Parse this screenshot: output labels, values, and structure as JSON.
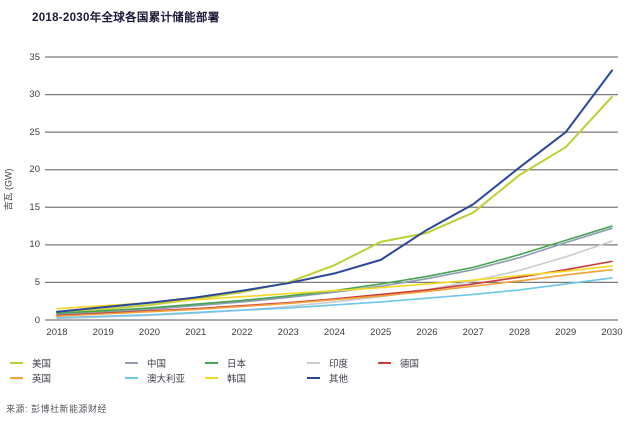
{
  "title": "2018-2030年全球各国累计储能部署",
  "source": "来源: 彭博社新能源财经",
  "chart_data": {
    "type": "line",
    "title": "2018-2030年全球各国累计储能部署",
    "xlabel": "",
    "ylabel": "吉瓦 (GW)",
    "x": [
      2018,
      2019,
      2020,
      2021,
      2022,
      2023,
      2024,
      2025,
      2026,
      2027,
      2028,
      2029,
      2030
    ],
    "ylim": [
      0,
      35
    ],
    "ytick_step": 5,
    "grid": true,
    "legend_position": "bottom",
    "gridline_color": "#7a7a7a",
    "series": [
      {
        "name": "美国",
        "color": "#bccf35",
        "values": [
          0.9,
          1.4,
          2.0,
          2.8,
          3.7,
          5.0,
          7.3,
          10.4,
          11.6,
          14.3,
          19.3,
          23.0,
          29.7
        ]
      },
      {
        "name": "中国",
        "color": "#8f9cb3",
        "values": [
          0.7,
          1.0,
          1.4,
          1.9,
          2.4,
          3.0,
          3.7,
          4.5,
          5.5,
          6.7,
          8.3,
          10.3,
          12.2
        ]
      },
      {
        "name": "日本",
        "color": "#46a452",
        "values": [
          0.9,
          1.2,
          1.6,
          2.1,
          2.6,
          3.2,
          3.9,
          4.8,
          5.8,
          7.0,
          8.7,
          10.6,
          12.5
        ]
      },
      {
        "name": "印度",
        "color": "#c7ccd1",
        "values": [
          0.2,
          0.4,
          0.6,
          0.9,
          1.3,
          1.8,
          2.4,
          3.1,
          4.0,
          5.2,
          6.6,
          8.4,
          10.5
        ]
      },
      {
        "name": "德国",
        "color": "#cc3a3c",
        "values": [
          0.6,
          0.9,
          1.2,
          1.5,
          1.9,
          2.3,
          2.8,
          3.4,
          4.0,
          4.8,
          5.7,
          6.7,
          7.8
        ]
      },
      {
        "name": "英国",
        "color": "#f2a13d",
        "values": [
          0.5,
          0.8,
          1.1,
          1.4,
          1.8,
          2.2,
          2.7,
          3.2,
          3.8,
          4.5,
          5.2,
          6.0,
          6.7
        ]
      },
      {
        "name": "澳大利亚",
        "color": "#70c6e8",
        "values": [
          0.3,
          0.5,
          0.7,
          1.0,
          1.3,
          1.6,
          2.0,
          2.4,
          2.9,
          3.4,
          4.0,
          4.8,
          5.6
        ]
      },
      {
        "name": "韩国",
        "color": "#f4d822",
        "values": [
          1.5,
          1.9,
          2.3,
          2.7,
          3.1,
          3.5,
          3.9,
          4.3,
          4.8,
          5.3,
          5.9,
          6.5,
          7.2
        ]
      },
      {
        "name": "其他",
        "color": "#2a4899",
        "values": [
          1.1,
          1.7,
          2.3,
          3.0,
          3.9,
          4.9,
          6.2,
          8.0,
          12.0,
          15.4,
          20.3,
          25.0,
          33.2
        ]
      }
    ],
    "legend_rows": [
      [
        "美国",
        "中国",
        "日本",
        "印度",
        "德国"
      ],
      [
        "英国",
        "澳大利亚",
        "韩国",
        "其他"
      ]
    ]
  }
}
